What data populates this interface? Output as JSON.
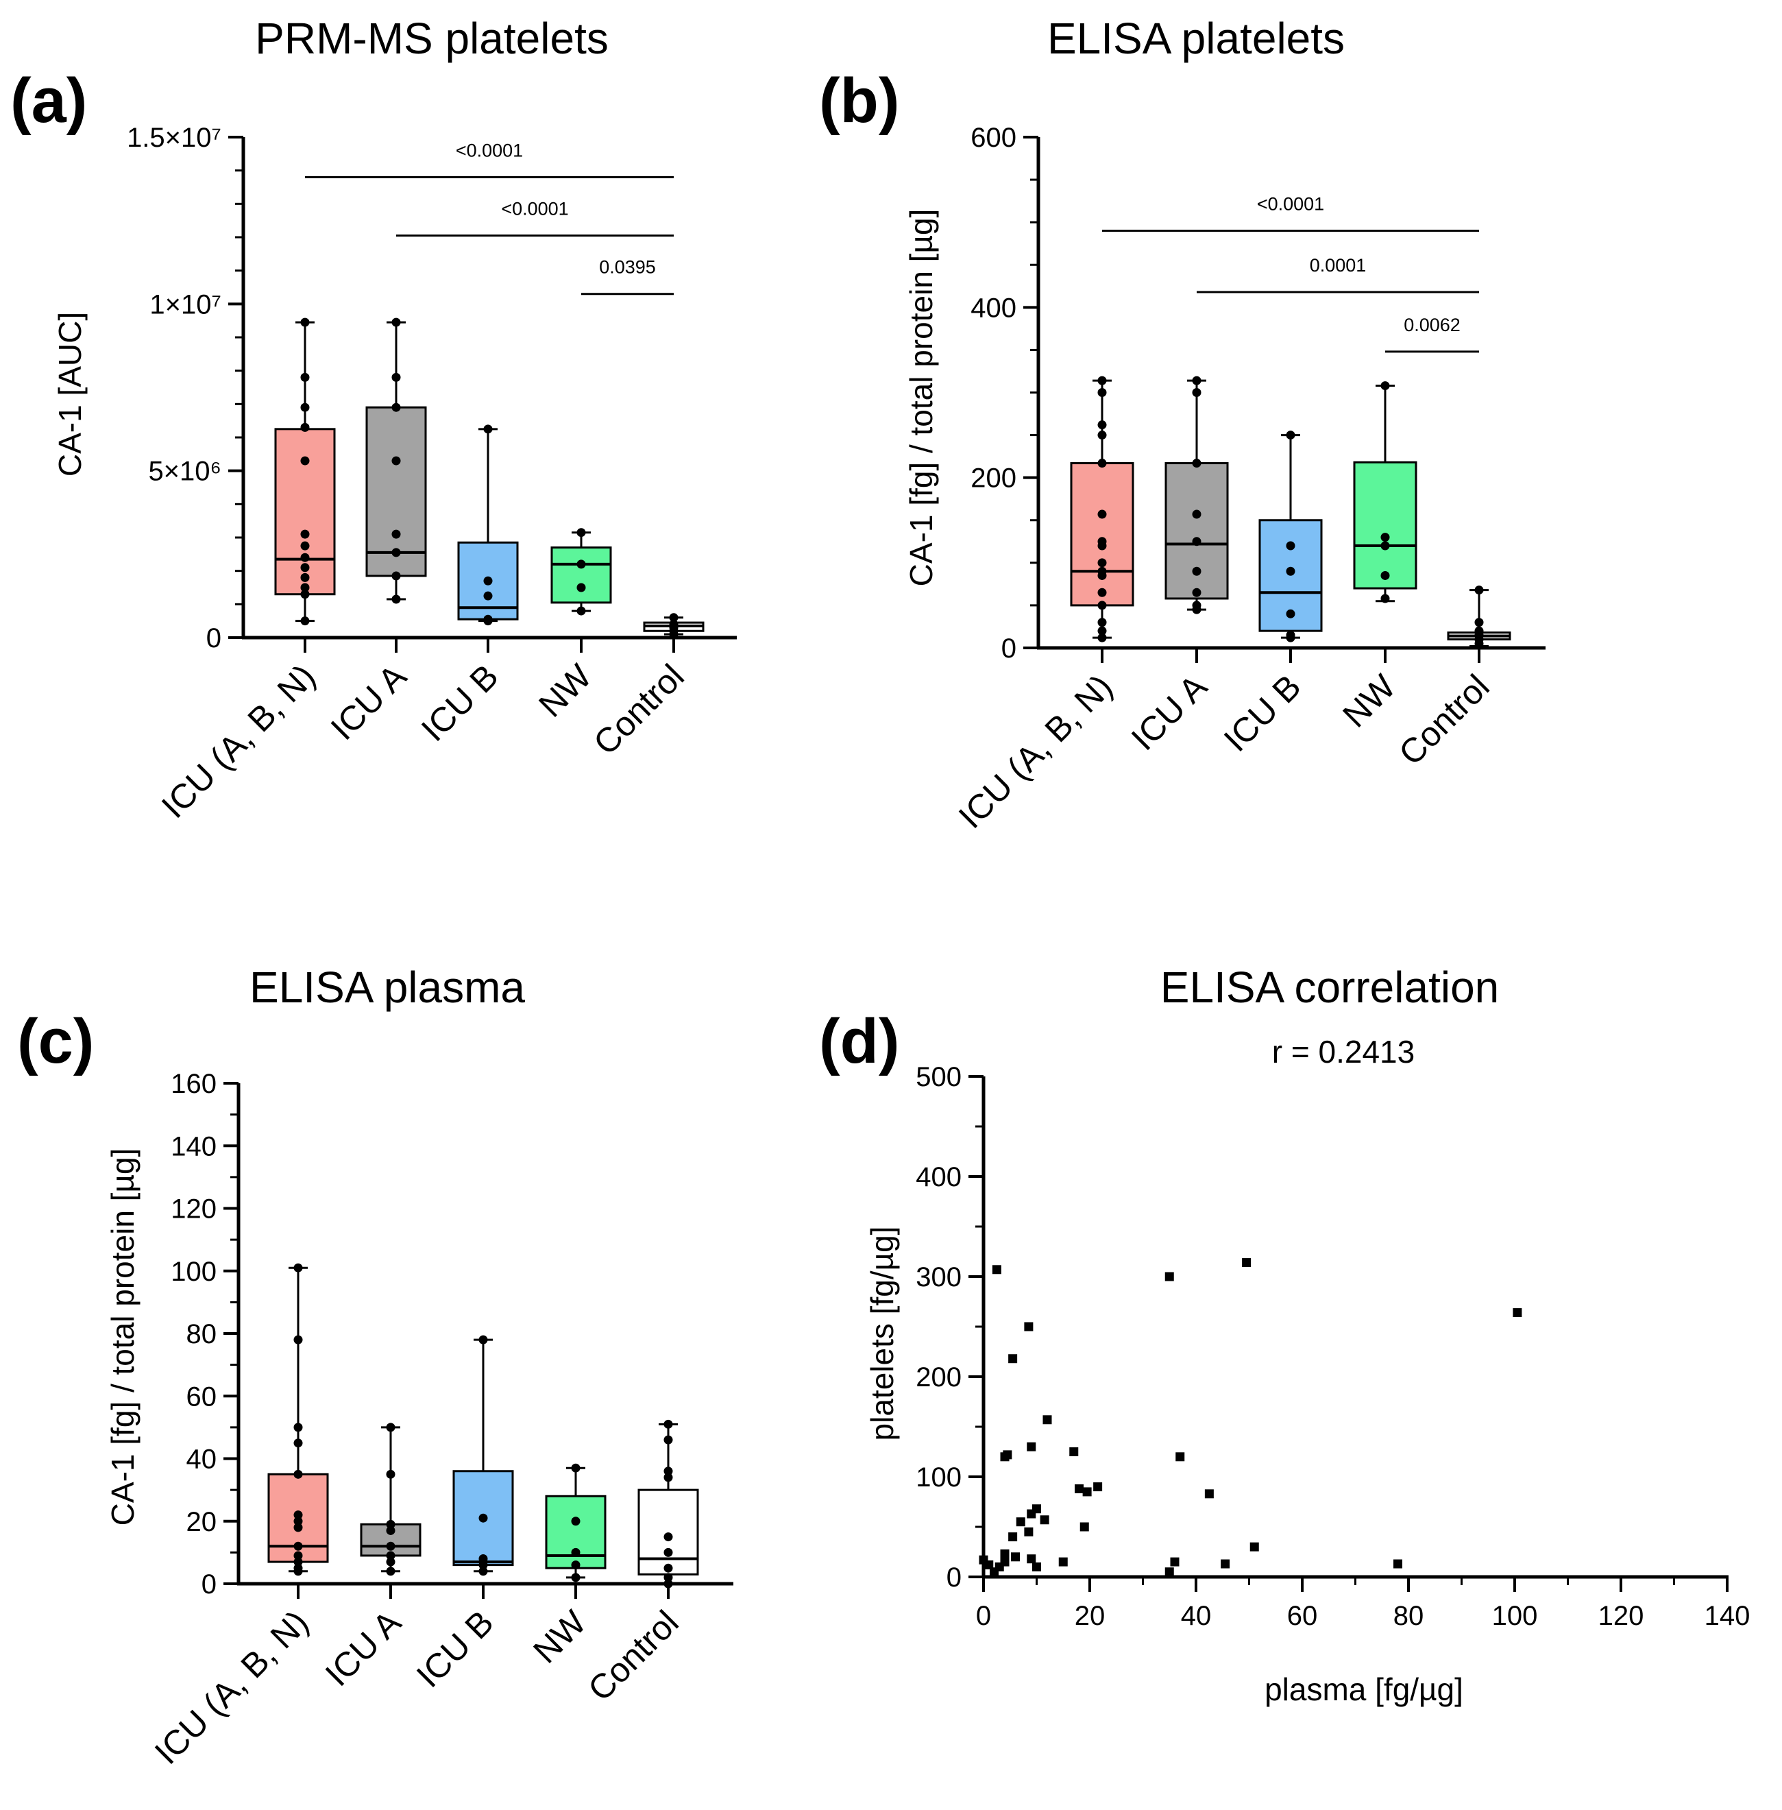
{
  "chart_data": [
    {
      "panel": "(a)",
      "type": "box",
      "title": "PRM-MS platelets",
      "ylabel": "CA-1 [AUC]",
      "ylim": [
        0,
        15000000
      ],
      "yticks": [
        0,
        5000000,
        10000000,
        15000000
      ],
      "ytick_labels": [
        "0",
        "5×10⁶",
        "1×10⁷",
        "1.5×10⁷"
      ],
      "categories": [
        "ICU (A, B, N)",
        "ICU A",
        "ICU B",
        "NW",
        "Control"
      ],
      "colors": [
        "#F8A09A",
        "#A3A3A3",
        "#7EBFF5",
        "#5CF59A",
        "#FFFFFF"
      ],
      "boxes": [
        {
          "min": 500000,
          "q1": 1300000,
          "median": 2350000,
          "q3": 6250000,
          "max": 9450000,
          "points": [
            9450000,
            7800000,
            6900000,
            6300000,
            5300000,
            3100000,
            2750000,
            2400000,
            2100000,
            1800000,
            1500000,
            1300000,
            500000
          ]
        },
        {
          "min": 1150000,
          "q1": 1850000,
          "median": 2550000,
          "q3": 6900000,
          "max": 9450000,
          "points": [
            9450000,
            7800000,
            6900000,
            5300000,
            3100000,
            2550000,
            1850000,
            1150000
          ]
        },
        {
          "min": 500000,
          "q1": 550000,
          "median": 900000,
          "q3": 2850000,
          "max": 6250000,
          "points": [
            6250000,
            1700000,
            1250000,
            550000,
            500000
          ]
        },
        {
          "min": 800000,
          "q1": 1050000,
          "median": 2200000,
          "q3": 2700000,
          "max": 3150000,
          "points": [
            3150000,
            2200000,
            1500000,
            800000
          ]
        },
        {
          "min": 100000,
          "q1": 200000,
          "median": 350000,
          "q3": 450000,
          "max": 600000,
          "points": [
            600000,
            400000,
            300000,
            200000,
            100000
          ]
        }
      ],
      "significance": [
        {
          "from": 0,
          "to": 4,
          "label": "<0.0001",
          "y": 13800000
        },
        {
          "from": 1,
          "to": 4,
          "label": "<0.0001",
          "y": 12050000
        },
        {
          "from": 3,
          "to": 4,
          "label": "0.0395",
          "y": 10300000
        }
      ]
    },
    {
      "panel": "(b)",
      "type": "box",
      "title": "ELISA platelets",
      "ylabel": "CA-1 [fg] / total protein [µg]",
      "ylim": [
        0,
        600
      ],
      "yticks": [
        0,
        200,
        400,
        600
      ],
      "ytick_labels": [
        "0",
        "200",
        "400",
        "600"
      ],
      "categories": [
        "ICU (A, B, N)",
        "ICU A",
        "ICU B",
        "NW",
        "Control"
      ],
      "colors": [
        "#F8A09A",
        "#A3A3A3",
        "#7EBFF5",
        "#5CF59A",
        "#FFFFFF"
      ],
      "boxes": [
        {
          "min": 12,
          "q1": 50,
          "median": 90,
          "q3": 217,
          "max": 314,
          "points": [
            314,
            300,
            262,
            250,
            217,
            157,
            125,
            120,
            100,
            90,
            85,
            65,
            50,
            30,
            20,
            12
          ]
        },
        {
          "min": 45,
          "q1": 58,
          "median": 122,
          "q3": 217,
          "max": 314,
          "points": [
            314,
            300,
            217,
            157,
            125,
            90,
            65,
            50,
            45
          ]
        },
        {
          "min": 12,
          "q1": 20,
          "median": 65,
          "q3": 150,
          "max": 250,
          "points": [
            250,
            120,
            90,
            40,
            15,
            12
          ]
        },
        {
          "min": 55,
          "q1": 70,
          "median": 120,
          "q3": 218,
          "max": 308,
          "points": [
            308,
            130,
            120,
            85,
            58
          ]
        },
        {
          "min": 2,
          "q1": 10,
          "median": 14,
          "q3": 18,
          "max": 68,
          "points": [
            68,
            30,
            20,
            15,
            10,
            5
          ]
        }
      ],
      "significance": [
        {
          "from": 0,
          "to": 4,
          "label": "<0.0001",
          "y": 490
        },
        {
          "from": 1,
          "to": 4,
          "label": "0.0001",
          "y": 418
        },
        {
          "from": 3,
          "to": 4,
          "label": "0.0062",
          "y": 348
        }
      ]
    },
    {
      "panel": "(c)",
      "type": "box",
      "title": "ELISA plasma",
      "ylabel": "CA-1 [fg] / total protein [µg]",
      "ylim": [
        0,
        160
      ],
      "yticks": [
        0,
        20,
        40,
        60,
        80,
        100,
        120,
        140,
        160
      ],
      "ytick_labels": [
        "0",
        "20",
        "40",
        "60",
        "80",
        "100",
        "120",
        "140",
        "160"
      ],
      "categories": [
        "ICU (A, B, N)",
        "ICU A",
        "ICU B",
        "NW",
        "Control"
      ],
      "colors": [
        "#F8A09A",
        "#A3A3A3",
        "#7EBFF5",
        "#5CF59A",
        "#FFFFFF"
      ],
      "boxes": [
        {
          "min": 4,
          "q1": 7,
          "median": 12,
          "q3": 35,
          "max": 101,
          "points": [
            101,
            78,
            50,
            45,
            35,
            22,
            20,
            18,
            12,
            9,
            7,
            5,
            4
          ]
        },
        {
          "min": 4,
          "q1": 9,
          "median": 12,
          "q3": 19,
          "max": 50,
          "points": [
            50,
            35,
            19,
            17,
            12,
            9,
            7,
            4
          ]
        },
        {
          "min": 4,
          "q1": 6,
          "median": 7,
          "q3": 36,
          "max": 78,
          "points": [
            78,
            21,
            8,
            6,
            4
          ]
        },
        {
          "min": 2,
          "q1": 5,
          "median": 9,
          "q3": 28,
          "max": 37,
          "points": [
            37,
            20,
            10,
            6,
            2
          ]
        },
        {
          "min": 0,
          "q1": 3,
          "median": 8,
          "q3": 30,
          "max": 51,
          "points": [
            51,
            46,
            36,
            34,
            15,
            10,
            5,
            2,
            0
          ]
        }
      ]
    },
    {
      "panel": "(d)",
      "type": "scatter",
      "title": "ELISA correlation",
      "subtitle": "r = 0.2413",
      "xlabel": "plasma [fg/µg]",
      "ylabel": "platelets [fg/µg]",
      "xlim": [
        0,
        140
      ],
      "ylim": [
        0,
        500
      ],
      "xticks": [
        0,
        20,
        40,
        60,
        80,
        100,
        120,
        140
      ],
      "yticks": [
        0,
        100,
        200,
        300,
        400,
        500
      ],
      "points": [
        [
          0,
          17
        ],
        [
          1,
          12
        ],
        [
          2,
          5
        ],
        [
          2.5,
          307
        ],
        [
          3,
          10
        ],
        [
          4,
          120
        ],
        [
          4,
          23
        ],
        [
          4.5,
          122
        ],
        [
          4,
          15
        ],
        [
          5.5,
          218
        ],
        [
          5.5,
          40
        ],
        [
          6,
          20
        ],
        [
          7,
          55
        ],
        [
          8.5,
          250
        ],
        [
          8.5,
          45
        ],
        [
          9,
          130
        ],
        [
          9,
          63
        ],
        [
          9,
          18
        ],
        [
          10,
          68
        ],
        [
          10,
          10
        ],
        [
          11.5,
          57
        ],
        [
          12,
          157
        ],
        [
          15,
          15
        ],
        [
          17,
          125
        ],
        [
          18,
          88
        ],
        [
          19,
          50
        ],
        [
          19.5,
          85
        ],
        [
          21.5,
          90
        ],
        [
          35,
          300
        ],
        [
          35,
          5
        ],
        [
          36,
          15
        ],
        [
          37,
          120
        ],
        [
          42.5,
          83
        ],
        [
          45.5,
          13
        ],
        [
          49.5,
          314
        ],
        [
          51,
          30
        ],
        [
          78,
          13
        ],
        [
          100.5,
          264
        ]
      ]
    }
  ]
}
